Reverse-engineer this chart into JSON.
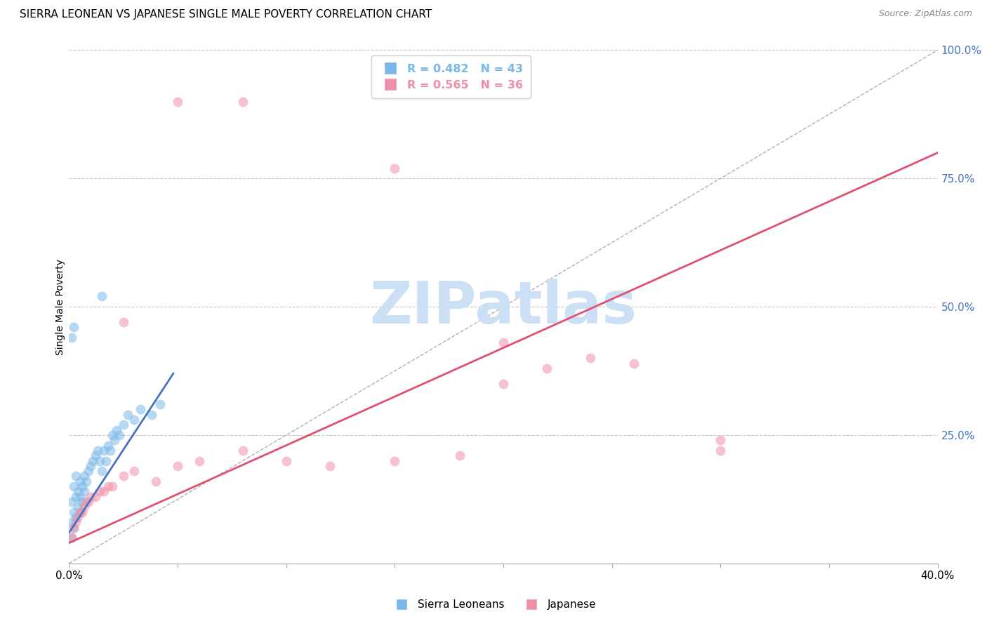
{
  "title": "SIERRA LEONEAN VS JAPANESE SINGLE MALE POVERTY CORRELATION CHART",
  "source": "Source: ZipAtlas.com",
  "ylabel": "Single Male Poverty",
  "xlim": [
    0.0,
    0.4
  ],
  "ylim": [
    -0.02,
    1.05
  ],
  "plot_ylim": [
    0.0,
    1.0
  ],
  "xtick_positions": [
    0.0,
    0.05,
    0.1,
    0.15,
    0.2,
    0.25,
    0.3,
    0.35,
    0.4
  ],
  "yticks_right": [
    0.25,
    0.5,
    0.75,
    1.0
  ],
  "ytick_gridlines": [
    0.25,
    0.5,
    0.75,
    1.0
  ],
  "watermark": "ZIPatlas",
  "legend_entries": [
    {
      "label": "R = 0.482   N = 43",
      "color": "#7ab8e8"
    },
    {
      "label": "R = 0.565   N = 36",
      "color": "#f090a8"
    }
  ],
  "legend_labels": [
    "Sierra Leoneans",
    "Japanese"
  ],
  "sierra_x": [
    0.001,
    0.001,
    0.001,
    0.002,
    0.002,
    0.002,
    0.003,
    0.003,
    0.003,
    0.004,
    0.004,
    0.005,
    0.005,
    0.005,
    0.006,
    0.006,
    0.007,
    0.007,
    0.008,
    0.009,
    0.01,
    0.011,
    0.012,
    0.013,
    0.014,
    0.015,
    0.016,
    0.017,
    0.018,
    0.019,
    0.02,
    0.021,
    0.022,
    0.023,
    0.025,
    0.027,
    0.03,
    0.033,
    0.038,
    0.042,
    0.001,
    0.002,
    0.015
  ],
  "sierra_y": [
    0.05,
    0.08,
    0.12,
    0.07,
    0.1,
    0.15,
    0.09,
    0.13,
    0.17,
    0.11,
    0.14,
    0.1,
    0.13,
    0.16,
    0.12,
    0.15,
    0.14,
    0.17,
    0.16,
    0.18,
    0.19,
    0.2,
    0.21,
    0.22,
    0.2,
    0.18,
    0.22,
    0.2,
    0.23,
    0.22,
    0.25,
    0.24,
    0.26,
    0.25,
    0.27,
    0.29,
    0.28,
    0.3,
    0.29,
    0.31,
    0.44,
    0.46,
    0.52
  ],
  "japanese_x": [
    0.001,
    0.002,
    0.003,
    0.004,
    0.005,
    0.006,
    0.007,
    0.008,
    0.009,
    0.01,
    0.012,
    0.014,
    0.016,
    0.018,
    0.02,
    0.025,
    0.03,
    0.04,
    0.05,
    0.06,
    0.08,
    0.1,
    0.12,
    0.15,
    0.18,
    0.2,
    0.22,
    0.24,
    0.26,
    0.3,
    0.025,
    0.05,
    0.08,
    0.15,
    0.2,
    0.3
  ],
  "japanese_y": [
    0.05,
    0.07,
    0.08,
    0.09,
    0.1,
    0.1,
    0.11,
    0.12,
    0.12,
    0.13,
    0.13,
    0.14,
    0.14,
    0.15,
    0.15,
    0.17,
    0.18,
    0.16,
    0.19,
    0.2,
    0.22,
    0.2,
    0.19,
    0.2,
    0.21,
    0.35,
    0.38,
    0.4,
    0.39,
    0.24,
    0.47,
    0.9,
    0.9,
    0.77,
    0.43,
    0.22
  ],
  "sierra_line_x": [
    0.0,
    0.048
  ],
  "sierra_line_y": [
    0.06,
    0.37
  ],
  "japanese_line_x": [
    0.0,
    0.4
  ],
  "japanese_line_y": [
    0.04,
    0.8
  ],
  "diag_line_x": [
    0.0,
    0.4
  ],
  "diag_line_y": [
    0.0,
    1.0
  ],
  "sierra_color": "#7ab8e8",
  "japanese_color": "#f090a8",
  "sierra_line_color": "#4472c4",
  "japanese_line_color": "#e05070",
  "diag_color": "#b0b0b0",
  "right_tick_color": "#4472c4",
  "background_color": "#ffffff",
  "title_fontsize": 11,
  "source_fontsize": 9,
  "ylabel_fontsize": 10,
  "watermark_color": "#cce0f5",
  "watermark_fontsize": 60
}
